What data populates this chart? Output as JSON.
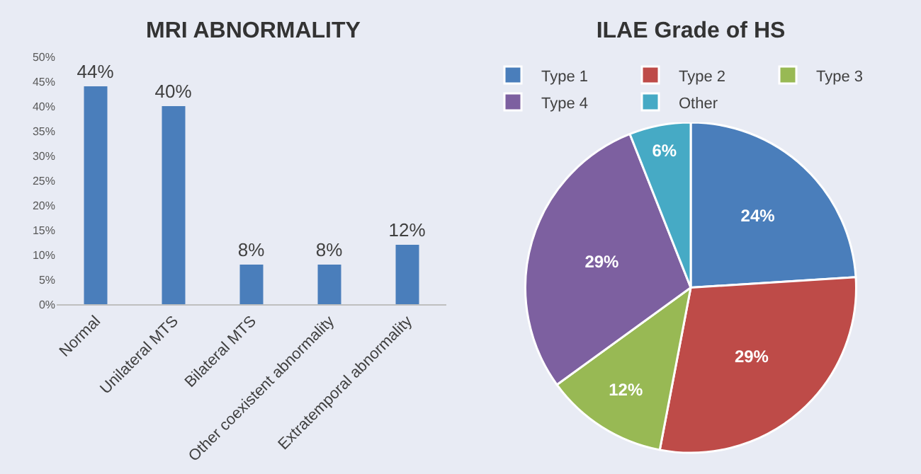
{
  "chart_data": [
    {
      "type": "bar",
      "title": "MRI ABNORMALITY",
      "categories": [
        "Normal",
        "Unilateral MTS",
        "Bilateral MTS",
        "Other coexistent abnormality",
        "Extratemporal abnormality"
      ],
      "values": [
        44,
        40,
        8,
        8,
        12
      ],
      "color": "#4a7ebb",
      "value_labels": [
        "44%",
        "40%",
        "8%",
        "8%",
        "12%"
      ],
      "ylim": [
        0,
        50
      ],
      "yticks": [
        {
          "value": 0,
          "label": "0%"
        },
        {
          "value": 5,
          "label": "5%"
        },
        {
          "value": 10,
          "label": "10%"
        },
        {
          "value": 15,
          "label": "15%"
        },
        {
          "value": 20,
          "label": "20%"
        },
        {
          "value": 25,
          "label": "25%"
        },
        {
          "value": 30,
          "label": "30%"
        },
        {
          "value": 35,
          "label": "35%"
        },
        {
          "value": 40,
          "label": "40%"
        },
        {
          "value": 45,
          "label": "45%"
        },
        {
          "value": 50,
          "label": "50%"
        }
      ]
    },
    {
      "type": "pie",
      "title": "ILAE Grade of HS",
      "categories": [
        "Type 1",
        "Type 2",
        "Type 3",
        "Type 4",
        "Other"
      ],
      "values": [
        24,
        29,
        12,
        29,
        6
      ],
      "colors": [
        "#4a7ebb",
        "#be4b48",
        "#98b954",
        "#7d60a0",
        "#46aac5"
      ],
      "value_labels": [
        "24%",
        "29%",
        "12%",
        "29%",
        "6%"
      ],
      "legend": "top"
    }
  ]
}
